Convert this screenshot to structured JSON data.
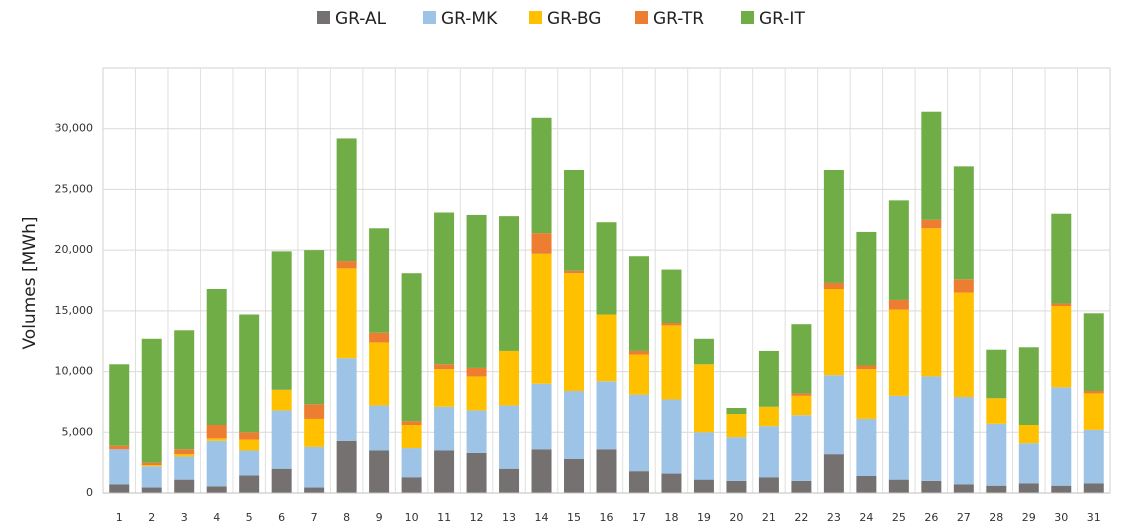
{
  "chart_data": {
    "type": "stacked_bar",
    "ylabel": "Volumes [MWh]",
    "categories": [
      "1",
      "2",
      "3",
      "4",
      "5",
      "6",
      "7",
      "8",
      "9",
      "10",
      "11",
      "12",
      "13",
      "14",
      "15",
      "16",
      "17",
      "18",
      "19",
      "20",
      "21",
      "22",
      "23",
      "24",
      "25",
      "26",
      "27",
      "28",
      "29",
      "30",
      "31"
    ],
    "series": [
      {
        "name": "GR-AL",
        "color": "#767171",
        "values": [
          700,
          450,
          1100,
          550,
          1450,
          2000,
          450,
          4300,
          3500,
          1300,
          3500,
          3300,
          2000,
          3600,
          2800,
          3600,
          1800,
          1600,
          1100,
          1000,
          1300,
          1000,
          3200,
          1400,
          1100,
          1000,
          700,
          600,
          800,
          600,
          800
        ]
      },
      {
        "name": "GR-MK",
        "color": "#9dc3e6",
        "values": [
          2900,
          1750,
          1900,
          3750,
          2050,
          4800,
          3350,
          6800,
          3700,
          2400,
          3600,
          3500,
          5200,
          5400,
          5600,
          5600,
          6300,
          6100,
          3900,
          3600,
          4200,
          5400,
          6500,
          4700,
          6900,
          8600,
          7200,
          5100,
          3300,
          8100,
          4400
        ]
      },
      {
        "name": "GR-BG",
        "color": "#ffc000",
        "values": [
          0,
          100,
          200,
          200,
          900,
          1700,
          2300,
          7400,
          5200,
          1900,
          3100,
          2800,
          4500,
          10700,
          9700,
          5500,
          3300,
          6100,
          5600,
          1900,
          1600,
          1600,
          7100,
          4100,
          7100,
          12200,
          8600,
          2100,
          1500,
          6700,
          3000
        ]
      },
      {
        "name": "GR-TR",
        "color": "#ed7d31",
        "values": [
          300,
          200,
          400,
          1100,
          600,
          0,
          1200,
          600,
          800,
          300,
          400,
          700,
          0,
          1700,
          200,
          0,
          300,
          200,
          0,
          0,
          0,
          200,
          500,
          300,
          800,
          700,
          1100,
          0,
          0,
          200,
          200
        ]
      },
      {
        "name": "GR-IT",
        "color": "#70ad47",
        "values": [
          6700,
          10200,
          9800,
          11200,
          9700,
          11400,
          12700,
          10100,
          8600,
          12200,
          12500,
          12600,
          11100,
          9500,
          8300,
          7600,
          7800,
          4400,
          2100,
          500,
          4600,
          5700,
          9300,
          11000,
          8200,
          8900,
          9300,
          4000,
          6400,
          7400,
          6400
        ]
      }
    ],
    "ylim": [
      0,
      35000
    ],
    "yticks": [
      0,
      {
        "value": 5000,
        "label": "5,000"
      },
      {
        "value": 10000,
        "label": "10,000"
      },
      {
        "value": 15000,
        "label": "15,000"
      },
      {
        "value": 20000,
        "label": "20,000"
      },
      {
        "value": 25000,
        "label": "25,000"
      },
      {
        "value": 30000,
        "label": "30,000"
      }
    ],
    "grid": true
  }
}
